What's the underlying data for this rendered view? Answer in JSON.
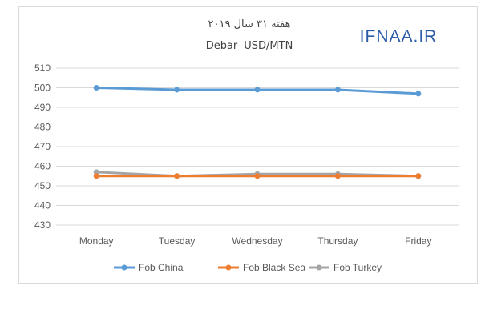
{
  "chart_data": {
    "type": "line",
    "title": "هفته ۳۱ سال ۲۰۱۹",
    "subtitle": "Debar- USD/MTN",
    "watermark": "IFNAA.IR",
    "categories": [
      "Monday",
      "Tuesday",
      "Wednesday",
      "Thursday",
      "Friday"
    ],
    "ylim": [
      430,
      510
    ],
    "yticks": [
      430,
      440,
      450,
      460,
      470,
      480,
      490,
      500,
      510
    ],
    "grid": true,
    "legend_position": "bottom",
    "series": [
      {
        "name": "Fob China",
        "color": "#5b9bd5",
        "values": [
          500,
          499,
          499,
          499,
          497
        ]
      },
      {
        "name": "Fob Black Sea",
        "color": "#ed7d31",
        "values": [
          455,
          455,
          455,
          455,
          455
        ]
      },
      {
        "name": "Fob Turkey",
        "color": "#a5a5a5",
        "values": [
          457,
          455,
          456,
          456,
          455
        ]
      }
    ]
  }
}
